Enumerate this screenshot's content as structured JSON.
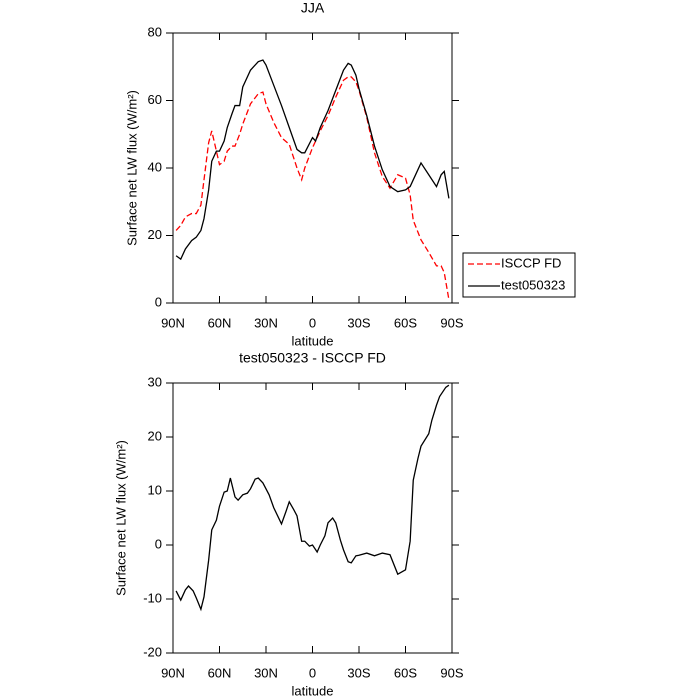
{
  "chart_data": [
    {
      "type": "line",
      "title": "JJA",
      "x_label": "latitude",
      "y_label": "Surface net LW flux (W/m²)",
      "x": [
        88,
        85,
        82,
        78,
        75,
        72,
        70,
        67,
        65,
        62,
        60,
        57,
        55,
        52,
        50,
        47,
        45,
        40,
        35,
        32,
        30,
        25,
        20,
        15,
        10,
        7,
        5,
        0,
        -2,
        -5,
        -10,
        -15,
        -20,
        -23,
        -25,
        -28,
        -30,
        -35,
        -40,
        -45,
        -50,
        -55,
        -60,
        -63,
        -65,
        -70,
        -75,
        -80,
        -83,
        -85,
        -88
      ],
      "series": [
        {
          "name": "ISCCP FD",
          "color": "#ff0000",
          "dash": true,
          "values": [
            21.5,
            23,
            25.5,
            26.5,
            26.5,
            29,
            36.5,
            47.5,
            51,
            45,
            41,
            42,
            45,
            46.5,
            46.5,
            50,
            53,
            59,
            62,
            62.5,
            59,
            53.5,
            49,
            47,
            40,
            36.5,
            40,
            46,
            48,
            51,
            55.5,
            61,
            66,
            67,
            67,
            65.5,
            63,
            55,
            44.5,
            37.5,
            34,
            38,
            37,
            32,
            24.5,
            18.7,
            15,
            11,
            11,
            9,
            1
          ]
        },
        {
          "name": "test050323",
          "color": "#000000",
          "dash": false,
          "values": [
            14,
            13,
            16,
            18.5,
            19.5,
            21.5,
            25,
            33.5,
            42,
            45,
            45,
            48,
            52,
            56,
            58.5,
            58.5,
            64,
            69,
            71.5,
            72,
            70.5,
            64.5,
            58.5,
            52,
            45.5,
            44.5,
            44.5,
            49,
            48,
            52,
            57,
            63,
            69,
            71,
            70.5,
            67.5,
            63.5,
            55.5,
            46.5,
            39.5,
            34.5,
            33,
            33.5,
            34.5,
            36.5,
            41.5,
            38,
            34.5,
            38,
            39,
            31
          ]
        }
      ],
      "xlim": [
        90,
        -90
      ],
      "xticks": [
        {
          "value": 90,
          "label": "90N"
        },
        {
          "value": 60,
          "label": "60N"
        },
        {
          "value": 30,
          "label": "30N"
        },
        0,
        {
          "value": -30,
          "label": "30S"
        },
        {
          "value": -60,
          "label": "60S"
        },
        {
          "value": -90,
          "label": "90S"
        }
      ],
      "ylim": [
        0,
        80
      ],
      "yticks": [
        0,
        20,
        40,
        60,
        80
      ],
      "legend": "right"
    },
    {
      "type": "line",
      "title": "test050323 - ISCCP FD",
      "x_label": "latitude",
      "y_label": "Surface net LW flux (W/m²)",
      "x": [
        88,
        85,
        82,
        80,
        77,
        75,
        72,
        70,
        67,
        65,
        62,
        60,
        57,
        55,
        53,
        50,
        48,
        45,
        42,
        40,
        37,
        35,
        32,
        28,
        25,
        20,
        17,
        15,
        12,
        10,
        7,
        5,
        2,
        0,
        -3,
        -5,
        -8,
        -10,
        -13,
        -15,
        -18,
        -20,
        -23,
        -25,
        -28,
        -30,
        -35,
        -40,
        -45,
        -50,
        -55,
        -60,
        -63,
        -65,
        -68,
        -70,
        -75,
        -77,
        -80,
        -82,
        -86,
        -88
      ],
      "series": [
        {
          "color": "#000000",
          "dash": false,
          "values": [
            -8.5,
            -10.2,
            -8.3,
            -7.6,
            -8.5,
            -9.8,
            -11.9,
            -9.6,
            -2.8,
            2.8,
            4.6,
            7.2,
            9.8,
            10,
            12.4,
            8.9,
            8.3,
            9.3,
            9.6,
            10.4,
            12.2,
            12.4,
            11.5,
            9.3,
            6.9,
            3.9,
            6.3,
            8,
            6.5,
            5.4,
            0.7,
            0.7,
            -0.2,
            0,
            -1.3,
            0,
            1.7,
            4.1,
            5,
            4.1,
            0.9,
            -0.9,
            -3.1,
            -3.3,
            -2,
            -1.9,
            -1.5,
            -2,
            -1.5,
            -1.8,
            -5.4,
            -4.6,
            0.7,
            12,
            16,
            18.3,
            20.6,
            23.1,
            25.9,
            27.5,
            29.2,
            29.6
          ]
        }
      ],
      "xlim": [
        90,
        -90
      ],
      "xticks": [
        {
          "value": 90,
          "label": "90N"
        },
        {
          "value": 60,
          "label": "60N"
        },
        {
          "value": 30,
          "label": "30N"
        },
        0,
        {
          "value": -30,
          "label": "30S"
        },
        {
          "value": -60,
          "label": "60S"
        },
        {
          "value": -90,
          "label": "90S"
        }
      ],
      "ylim": [
        -20,
        30
      ],
      "yticks": [
        -20,
        -10,
        0,
        10,
        20,
        30
      ]
    }
  ]
}
